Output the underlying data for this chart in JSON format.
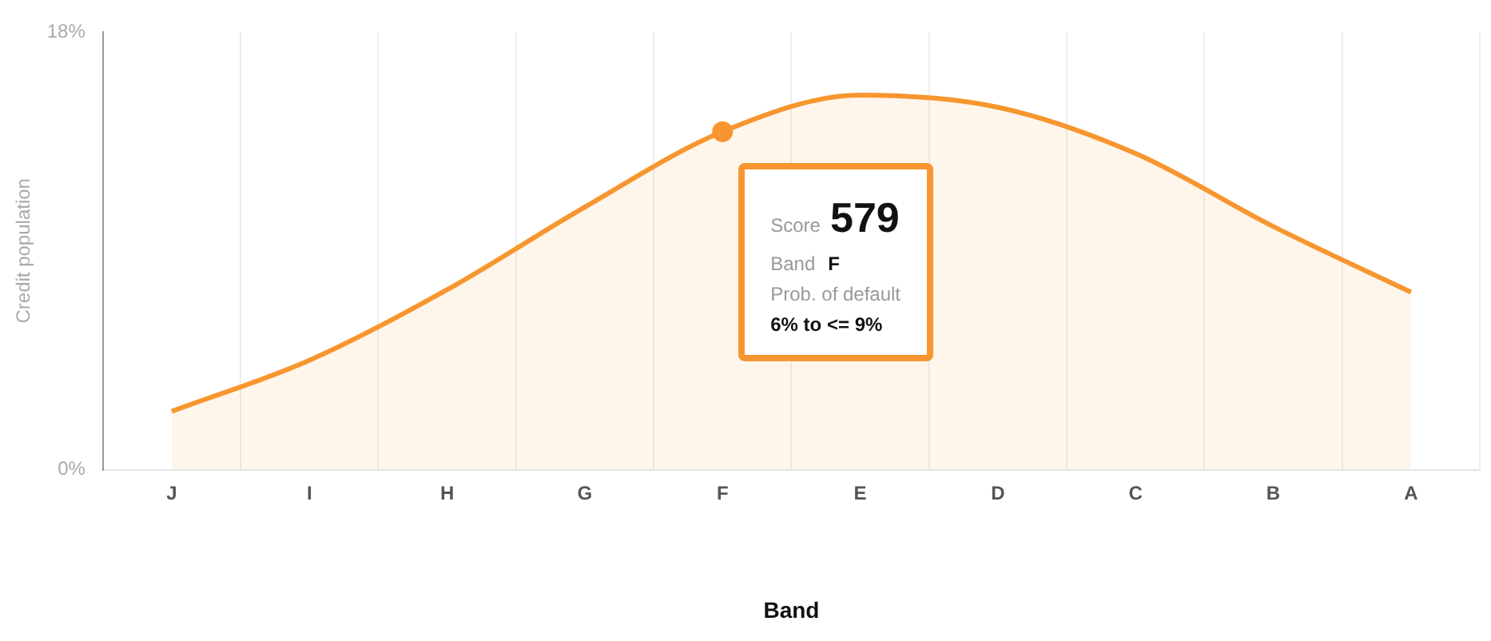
{
  "chart_data": {
    "type": "area",
    "xlabel": "Band",
    "ylabel": "Credit population",
    "categories": [
      "J",
      "I",
      "H",
      "G",
      "F",
      "E",
      "D",
      "C",
      "B",
      "A"
    ],
    "series": [
      {
        "values": [
          2.4,
          4.5,
          7.4,
          10.8,
          13.9,
          15.4,
          14.9,
          13.0,
          10.0,
          7.3
        ],
        "color": "#f7962f"
      },
      {
        "type": "scatter",
        "x": [
          "F"
        ],
        "values": [
          13.9
        ],
        "color": "#f7962f"
      }
    ],
    "ylim": [
      0,
      18
    ],
    "yticks": [
      {
        "value": 0,
        "label": "0%"
      },
      {
        "value": 18,
        "label": "18%"
      }
    ],
    "grid": "x",
    "legend": false,
    "annotations": [
      "Score",
      "579",
      "Band",
      "F",
      "Prob. of default",
      "6% to <= 9%"
    ]
  }
}
